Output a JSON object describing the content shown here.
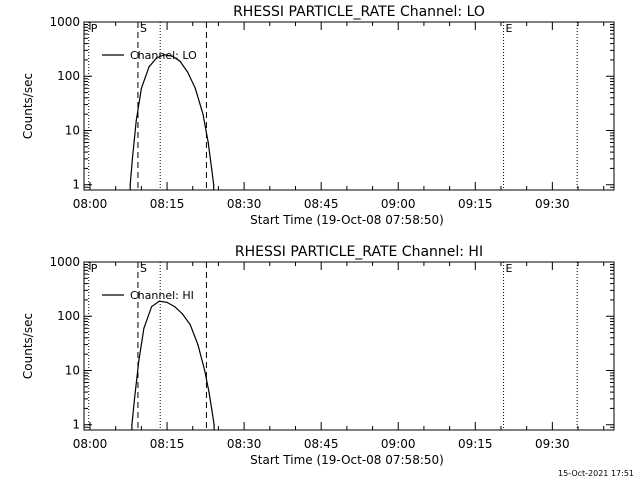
{
  "footer_timestamp": "15-Oct-2021 17:51",
  "chart_data": [
    {
      "type": "line",
      "title": "RHESSI PARTICLE_RATE Channel: LO",
      "xlabel": "Start Time (19-Oct-08 07:58:50)",
      "ylabel": "Counts/sec",
      "y_scale": "log",
      "ylim": [
        0.8,
        1000
      ],
      "xlim": [
        "07:58:50",
        "09:42:00"
      ],
      "x_ticks": [
        "08:00",
        "08:15",
        "08:30",
        "08:45",
        "09:00",
        "09:15",
        "09:30"
      ],
      "y_ticks": [
        "1",
        "10",
        "100",
        "1000"
      ],
      "legend_position": "top-left",
      "series": [
        {
          "name": "Channel: LO",
          "x": [
            "08:07:50",
            "08:08:15",
            "08:09:00",
            "08:10:00",
            "08:11:30",
            "08:13:00",
            "08:14:30",
            "08:16:00",
            "08:17:30",
            "08:19:00",
            "08:20:30",
            "08:22:00",
            "08:23:00",
            "08:23:40",
            "08:24:05"
          ],
          "values": [
            1,
            3,
            15,
            60,
            150,
            220,
            250,
            235,
            190,
            120,
            60,
            20,
            6,
            2,
            1
          ]
        }
      ],
      "vlines": [
        {
          "x": "07:59:45",
          "style": "dotted",
          "label": "P"
        },
        {
          "x": "08:09:20",
          "style": "dashed",
          "label": "S"
        },
        {
          "x": "08:13:40",
          "style": "dotted",
          "label": ""
        },
        {
          "x": "08:22:40",
          "style": "dashed",
          "label": ""
        },
        {
          "x": "09:20:30",
          "style": "dotted",
          "label": "E"
        },
        {
          "x": "09:34:50",
          "style": "dotted",
          "label": ""
        }
      ]
    },
    {
      "type": "line",
      "title": "RHESSI PARTICLE_RATE Channel: HI",
      "xlabel": "Start Time (19-Oct-08 07:58:50)",
      "ylabel": "Counts/sec",
      "y_scale": "log",
      "ylim": [
        0.8,
        1000
      ],
      "xlim": [
        "07:58:50",
        "09:42:00"
      ],
      "x_ticks": [
        "08:00",
        "08:15",
        "08:30",
        "08:45",
        "09:00",
        "09:15",
        "09:30"
      ],
      "y_ticks": [
        "1",
        "10",
        "100",
        "1000"
      ],
      "legend_position": "top-left",
      "series": [
        {
          "name": "Channel: HI",
          "x": [
            "08:08:10",
            "08:08:40",
            "08:09:30",
            "08:10:30",
            "08:12:00",
            "08:13:30",
            "08:15:00",
            "08:16:30",
            "08:18:00",
            "08:19:30",
            "08:21:00",
            "08:22:20",
            "08:23:10",
            "08:23:40",
            "08:24:10"
          ],
          "values": [
            1,
            3,
            15,
            60,
            150,
            190,
            180,
            150,
            110,
            70,
            30,
            10,
            4,
            2,
            1
          ]
        }
      ],
      "vlines": [
        {
          "x": "07:59:45",
          "style": "dotted",
          "label": "P"
        },
        {
          "x": "08:09:20",
          "style": "dashed",
          "label": "S"
        },
        {
          "x": "08:13:40",
          "style": "dotted",
          "label": ""
        },
        {
          "x": "08:22:40",
          "style": "dashed",
          "label": ""
        },
        {
          "x": "09:20:30",
          "style": "dotted",
          "label": "E"
        },
        {
          "x": "09:34:50",
          "style": "dotted",
          "label": ""
        }
      ]
    }
  ]
}
